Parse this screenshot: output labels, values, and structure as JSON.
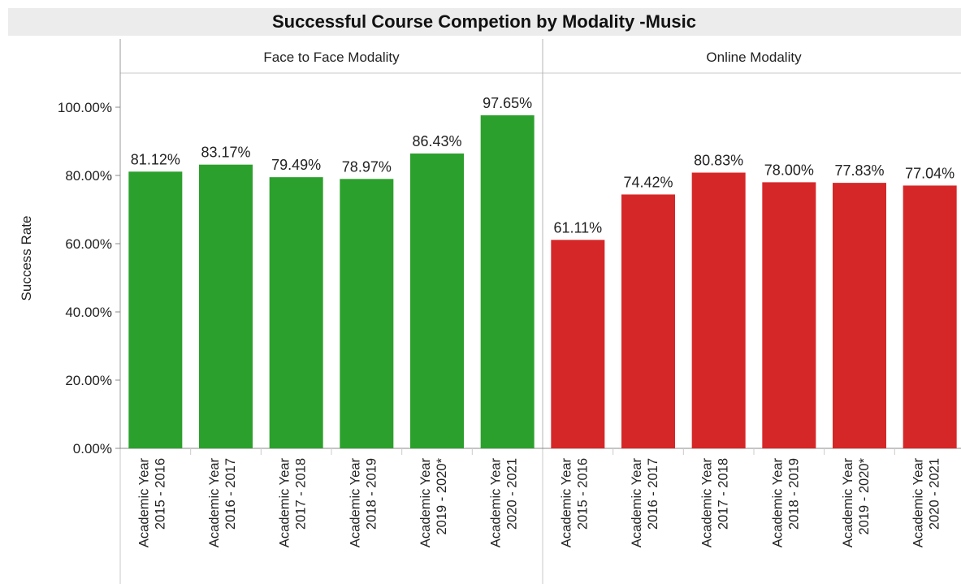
{
  "chart_data": {
    "type": "bar",
    "title": "Successful Course Competion by Modality -Music",
    "ylabel": "Success Rate",
    "ylim": [
      0,
      110
    ],
    "yticks": [
      "0.00%",
      "20.00%",
      "40.00%",
      "60.00%",
      "80.00%",
      "100.00%"
    ],
    "ytick_values": [
      0,
      20,
      40,
      60,
      80,
      100
    ],
    "grid": false,
    "legend": "none",
    "categories": [
      [
        "Academic Year",
        "2015 - 2016"
      ],
      [
        "Academic Year",
        "2016 - 2017"
      ],
      [
        "Academic Year",
        "2017 - 2018"
      ],
      [
        "Academic Year",
        "2018 - 2019"
      ],
      [
        "Academic Year",
        "2019 - 2020*"
      ],
      [
        "Academic Year",
        "2020 - 2021"
      ]
    ],
    "panels": [
      {
        "name": "Face to Face Modality",
        "color": "#2ca02c",
        "values": [
          81.12,
          83.17,
          79.49,
          78.97,
          86.43,
          97.65
        ],
        "labels": [
          "81.12%",
          "83.17%",
          "79.49%",
          "78.97%",
          "86.43%",
          "97.65%"
        ]
      },
      {
        "name": "Online Modality",
        "color": "#d62728",
        "values": [
          61.11,
          74.42,
          80.83,
          78.0,
          77.83,
          77.04
        ],
        "labels": [
          "61.11%",
          "74.42%",
          "80.83%",
          "78.00%",
          "77.83%",
          "77.04%"
        ]
      }
    ]
  }
}
